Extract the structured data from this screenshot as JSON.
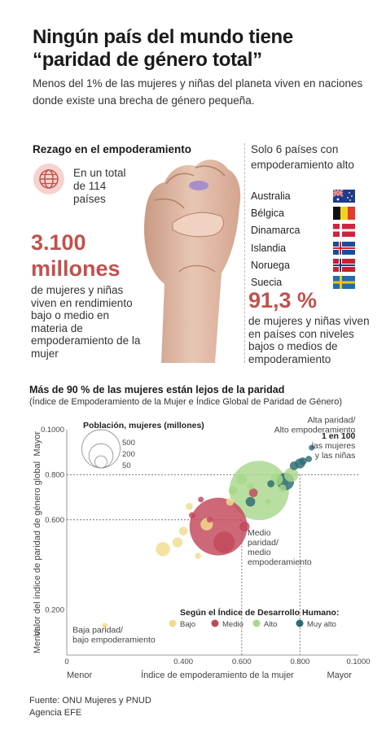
{
  "header": {
    "title": "Ningún país del mundo tiene “paridad de género total”",
    "subtitle": "Menos del 1% de las mujeres y niñas del planeta viven en naciones donde existe una brecha de género pequeña."
  },
  "left_panel": {
    "heading": "Rezago en el empoderamiento",
    "total_text": "En un total de 114 países",
    "big_number_line1": "3.100",
    "big_number_line2": "millones",
    "description": "de mujeres y niñas viven en rendimiento bajo o medio en materia de empoderamiento de la mujer"
  },
  "right_panel": {
    "heading": "Solo 6 países con empoderamiento alto",
    "countries": [
      {
        "name": "Australia",
        "flag": "australia-flag"
      },
      {
        "name": "Bélgica",
        "flag": "belgium-flag"
      },
      {
        "name": "Dinamarca",
        "flag": "denmark-flag"
      },
      {
        "name": "Islandia",
        "flag": "iceland-flag"
      },
      {
        "name": "Noruega",
        "flag": "norway-flag"
      },
      {
        "name": "Suecia",
        "flag": "sweden-flag"
      }
    ],
    "percent": "91,3 %",
    "description": "de mujeres y niñas viven en países con niveles bajos o medios de empoderamiento"
  },
  "colors": {
    "accent": "#c1524c",
    "bajo": "#f2dc8c",
    "medio": "#c2475a",
    "alto": "#a8d88c",
    "muy_alto": "#2c6b73"
  },
  "chart_data": {
    "type": "scatter",
    "title": "Más de 90 % de las mujeres están lejos de la paridad",
    "subtitle": "(Índice de Empoderamiento de la Mujer e Índice Global de Paridad de Género)",
    "xlabel": "Índice de empoderamiento de la mujer",
    "ylabel": "Valor del índice de paridad de género global",
    "x_low_label": "Menor",
    "x_high_label": "Mayor",
    "y_low_label": "Menor",
    "y_high_label": "Mayor",
    "xlim": [
      0,
      1
    ],
    "ylim": [
      0,
      1
    ],
    "x_ticks": [
      {
        "v": 0.4,
        "t": "0.400"
      },
      {
        "v": 0.6,
        "t": "0.600"
      },
      {
        "v": 0.8,
        "t": "0.800"
      },
      {
        "v": 1.0,
        "t": "0.1000"
      }
    ],
    "y_ticks": [
      {
        "v": 0.2,
        "t": "0.200"
      },
      {
        "v": 0.6,
        "t": "0.600"
      },
      {
        "v": 0.8,
        "t": "0.800"
      },
      {
        "v": 1.0,
        "t": "0.1000"
      }
    ],
    "x_zero_label": "0",
    "thresholds": {
      "x": [
        0.6,
        0.8
      ],
      "y": [
        0.6,
        0.8
      ]
    },
    "size_legend": {
      "title": "Población, mujeres (millones)",
      "values": [
        500,
        200,
        50
      ]
    },
    "color_legend": {
      "title": "Según el Índice de Desarrollo Humano:",
      "items": [
        {
          "label": "Bajo",
          "color": "#f2dc8c"
        },
        {
          "label": "Medio",
          "color": "#c2475a"
        },
        {
          "label": "Alto",
          "color": "#a8d88c"
        },
        {
          "label": "Muy alto",
          "color": "#2c6b73"
        }
      ]
    },
    "annotations": [
      {
        "text": "Alta paridad/\nAlto empoderamiento",
        "bold_lead": "",
        "x": 0.99,
        "y": 1.03,
        "anchor": "end"
      },
      {
        "text": "las mujeres\ny las niñas",
        "bold_lead": "1 en 100",
        "x": 0.99,
        "y": 0.96,
        "anchor": "end"
      },
      {
        "text": "Medio\nparidad/\nmedio\nempoderamiento",
        "bold_lead": "",
        "x": 0.62,
        "y": 0.53,
        "anchor": "start"
      },
      {
        "text": "Baja paridad/\nbajo empoderamiento",
        "bold_lead": "",
        "x": 0.02,
        "y": 0.1,
        "anchor": "start"
      }
    ],
    "points": [
      {
        "x": 0.13,
        "y": 0.13,
        "pop": 3,
        "hdi": "bajo"
      },
      {
        "x": 0.33,
        "y": 0.47,
        "pop": 40,
        "hdi": "bajo"
      },
      {
        "x": 0.38,
        "y": 0.5,
        "pop": 20,
        "hdi": "bajo"
      },
      {
        "x": 0.4,
        "y": 0.55,
        "pop": 15,
        "hdi": "bajo"
      },
      {
        "x": 0.45,
        "y": 0.44,
        "pop": 8,
        "hdi": "bajo"
      },
      {
        "x": 0.42,
        "y": 0.66,
        "pop": 10,
        "hdi": "bajo"
      },
      {
        "x": 0.48,
        "y": 0.58,
        "pop": 30,
        "hdi": "bajo"
      },
      {
        "x": 0.56,
        "y": 0.68,
        "pop": 12,
        "hdi": "bajo"
      },
      {
        "x": 0.43,
        "y": 0.62,
        "pop": 8,
        "hdi": "medio"
      },
      {
        "x": 0.46,
        "y": 0.69,
        "pop": 6,
        "hdi": "medio"
      },
      {
        "x": 0.49,
        "y": 0.6,
        "pop": 5,
        "hdi": "medio"
      },
      {
        "x": 0.52,
        "y": 0.57,
        "pop": 660,
        "hdi": "medio"
      },
      {
        "x": 0.54,
        "y": 0.5,
        "pop": 90,
        "hdi": "medio"
      },
      {
        "x": 0.61,
        "y": 0.57,
        "pop": 20,
        "hdi": "medio"
      },
      {
        "x": 0.64,
        "y": 0.72,
        "pop": 15,
        "hdi": "medio"
      },
      {
        "x": 0.57,
        "y": 0.73,
        "pop": 15,
        "hdi": "alto"
      },
      {
        "x": 0.6,
        "y": 0.78,
        "pop": 22,
        "hdi": "alto"
      },
      {
        "x": 0.63,
        "y": 0.75,
        "pop": 10,
        "hdi": "alto"
      },
      {
        "x": 0.66,
        "y": 0.73,
        "pop": 700,
        "hdi": "alto"
      },
      {
        "x": 0.72,
        "y": 0.78,
        "pop": 30,
        "hdi": "alto"
      },
      {
        "x": 0.77,
        "y": 0.8,
        "pop": 40,
        "hdi": "alto"
      },
      {
        "x": 0.74,
        "y": 0.74,
        "pop": 12,
        "hdi": "alto"
      },
      {
        "x": 0.69,
        "y": 0.68,
        "pop": 8,
        "hdi": "alto"
      },
      {
        "x": 0.63,
        "y": 0.68,
        "pop": 18,
        "hdi": "muy_alto"
      },
      {
        "x": 0.7,
        "y": 0.76,
        "pop": 10,
        "hdi": "muy_alto"
      },
      {
        "x": 0.75,
        "y": 0.77,
        "pop": 60,
        "hdi": "muy_alto"
      },
      {
        "x": 0.78,
        "y": 0.84,
        "pop": 15,
        "hdi": "muy_alto"
      },
      {
        "x": 0.8,
        "y": 0.85,
        "pop": 20,
        "hdi": "muy_alto"
      },
      {
        "x": 0.81,
        "y": 0.86,
        "pop": 12,
        "hdi": "muy_alto"
      },
      {
        "x": 0.83,
        "y": 0.87,
        "pop": 8,
        "hdi": "muy_alto"
      },
      {
        "x": 0.84,
        "y": 0.92,
        "pop": 3,
        "hdi": "muy_alto"
      }
    ]
  },
  "source": {
    "line1": "Fuente: ONU Mujeres y PNUD",
    "line2": "Agencia EFE"
  }
}
